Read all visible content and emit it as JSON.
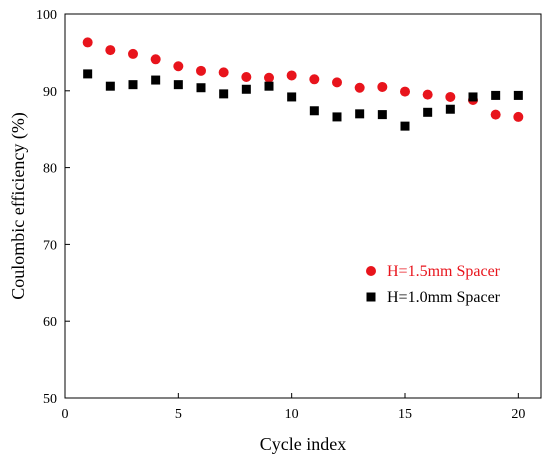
{
  "chart_data": {
    "type": "scatter",
    "title": "",
    "xlabel": "Cycle index",
    "ylabel": "Coulombic efficiency (%)",
    "xlim": [
      0,
      21
    ],
    "ylim": [
      50,
      100
    ],
    "xticks": [
      0,
      5,
      10,
      15,
      20
    ],
    "yticks": [
      50,
      60,
      70,
      80,
      90,
      100
    ],
    "grid": false,
    "legend_position": "middle-right",
    "series": [
      {
        "name": "H=1.5mm Spacer",
        "marker": "circle",
        "color": "#e8141c",
        "x": [
          1,
          2,
          3,
          4,
          5,
          6,
          7,
          8,
          9,
          10,
          11,
          12,
          13,
          14,
          15,
          16,
          17,
          18,
          19,
          20
        ],
        "y": [
          96.3,
          95.3,
          94.8,
          94.1,
          93.2,
          92.6,
          92.4,
          91.8,
          91.7,
          92.0,
          91.5,
          91.1,
          90.4,
          90.5,
          89.9,
          89.5,
          89.2,
          88.8,
          86.9,
          86.6
        ]
      },
      {
        "name": "H=1.0mm Spacer",
        "marker": "square",
        "color": "#000000",
        "x": [
          1,
          2,
          3,
          4,
          5,
          6,
          7,
          8,
          9,
          10,
          11,
          12,
          13,
          14,
          15,
          16,
          17,
          18,
          19,
          20
        ],
        "y": [
          92.2,
          90.6,
          90.8,
          91.4,
          90.8,
          90.4,
          89.6,
          90.2,
          90.6,
          89.2,
          87.4,
          86.6,
          87.0,
          86.9,
          85.4,
          87.2,
          87.6,
          89.2,
          89.4,
          89.4
        ]
      }
    ]
  }
}
